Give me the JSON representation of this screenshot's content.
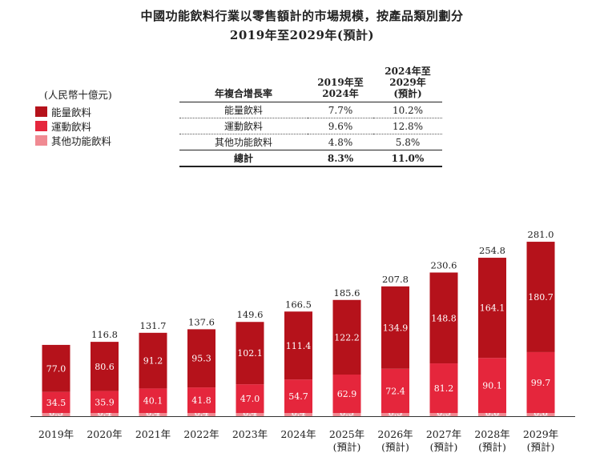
{
  "title_line1": "中國功能飲料行業以零售額計的市場規模，按產品類別劃分",
  "title_line2": "2019年至2029年(預計)",
  "unit_label": "(人民幣十億元)",
  "colors": {
    "energy": "#b5121b",
    "sports": "#e5263c",
    "other": "#f08a92"
  },
  "cagr_table": {
    "header": {
      "col1": "年複合增長率",
      "col2": "2019年至\n2024年",
      "col3": "2024年至\n2029年\n(預計)"
    },
    "rows": [
      {
        "name": "能量飲料",
        "v1": "7.7%",
        "v2": "10.2%"
      },
      {
        "name": "運動飲料",
        "v1": "9.6%",
        "v2": "12.8%"
      },
      {
        "name": "其他功能飲料",
        "v1": "4.8%",
        "v2": "5.8%"
      }
    ],
    "total": {
      "name": "總計",
      "v1": "8.3%",
      "v2": "11.0%"
    }
  },
  "chart_data": {
    "type": "bar",
    "stacked": true,
    "categories": [
      "2019年",
      "2020年",
      "2021年",
      "2022年",
      "2023年",
      "2024年",
      "2025年\n(預計)",
      "2026年\n(預計)",
      "2027年\n(預計)",
      "2028年\n(預計)",
      "2029年\n(預計)"
    ],
    "series": [
      {
        "name": "其他功能飲料",
        "values": [
          0.3,
          0.4,
          0.4,
          0.4,
          0.4,
          0.4,
          0.5,
          0.5,
          0.5,
          0.6,
          0.6
        ]
      },
      {
        "name": "運動飲料",
        "values": [
          34.5,
          35.9,
          40.1,
          41.8,
          47.0,
          54.7,
          62.9,
          72.4,
          81.2,
          90.1,
          99.7
        ]
      },
      {
        "name": "能量飲料",
        "values": [
          77.0,
          80.6,
          91.2,
          95.3,
          102.1,
          111.4,
          122.2,
          134.9,
          148.8,
          164.1,
          180.7
        ]
      }
    ],
    "totals": [
      null,
      116.8,
      131.7,
      137.6,
      149.6,
      166.5,
      185.6,
      207.8,
      230.6,
      254.8,
      281.0
    ],
    "legend": [
      "能量飲料",
      "運動飲料",
      "其他功能飲料"
    ],
    "ylim": [
      0,
      290
    ]
  }
}
